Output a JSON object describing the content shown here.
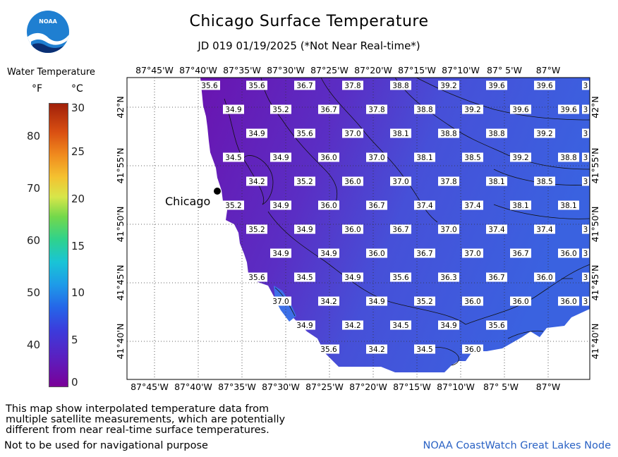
{
  "header": {
    "title": "Chicago Surface Temperature",
    "subtitle": "JD 019 01/19/2025 (*Not Near Real-time*)"
  },
  "logo": {
    "text": "NOAA"
  },
  "legend": {
    "title": "Water Temperature",
    "unit_f": "°F",
    "unit_c": "°C",
    "f_ticks": [
      "80",
      "70",
      "60",
      "50",
      "40"
    ],
    "c_ticks": [
      "30",
      "25",
      "20",
      "15",
      "10",
      "5",
      "0"
    ]
  },
  "map": {
    "top_lon_labels": [
      "87°45'W",
      "87°40'W",
      "87°35'W",
      "87°30'W",
      "87°25'W",
      "87°20'W",
      "87°15'W",
      "87°10'W",
      "87° 5'W",
      "87°W"
    ],
    "bottom_lon_labels": [
      "87°45'W",
      "87°40'W",
      "87°35'W",
      "87°30'W",
      "87°25'W",
      "87°20'W",
      "87°15'W",
      "87°10'W",
      "87° 5'W",
      "87°W"
    ],
    "lat_labels": [
      "42°N",
      "41°55'N",
      "41°50'N",
      "41°45'N",
      "41°40'N"
    ],
    "city_label": "Chicago",
    "rows": [
      [
        "35.6",
        "35.6",
        "36.7",
        "37.8",
        "38.8",
        "39.2",
        "39.6",
        "39.6",
        "3"
      ],
      [
        "34.9",
        "35.2",
        "36.7",
        "37.8",
        "38.8",
        "39.2",
        "39.6",
        "39.6",
        "3"
      ],
      [
        "34.9",
        "35.6",
        "37.0",
        "38.1",
        "38.8",
        "38.8",
        "39.2",
        "3"
      ],
      [
        "34.5",
        "34.9",
        "36.0",
        "37.0",
        "38.1",
        "38.5",
        "39.2",
        "38.8",
        "3"
      ],
      [
        "34.2",
        "35.2",
        "36.0",
        "37.0",
        "37.8",
        "38.1",
        "38.5",
        "3"
      ],
      [
        "35.2",
        "34.9",
        "36.0",
        "36.7",
        "37.4",
        "37.4",
        "38.1",
        "38.1",
        "3"
      ],
      [
        "35.2",
        "34.9",
        "36.0",
        "36.7",
        "37.0",
        "37.4",
        "37.4",
        "3"
      ],
      [
        "34.9",
        "34.9",
        "36.0",
        "36.7",
        "37.0",
        "36.7",
        "36.0",
        "3"
      ],
      [
        "35.6",
        "34.5",
        "34.9",
        "35.6",
        "36.3",
        "36.7",
        "36.0",
        "3"
      ],
      [
        "37.0",
        "34.2",
        "34.9",
        "35.2",
        "36.0",
        "36.0",
        "36.0",
        "3"
      ],
      [
        "34.9",
        "34.2",
        "34.5",
        "34.9",
        "35.6"
      ],
      [
        "35.6",
        "34.2",
        "34.5",
        "36.0"
      ]
    ]
  },
  "footer": {
    "note_lines": [
      "This map show interpolated temperature data from",
      "multiple satellite measurements, which are potentially",
      "different from near real-time surface temperatures."
    ],
    "nav_warning": "Not to be used for navigational purpose",
    "credit": "NOAA CoastWatch Great Lakes Node"
  }
}
